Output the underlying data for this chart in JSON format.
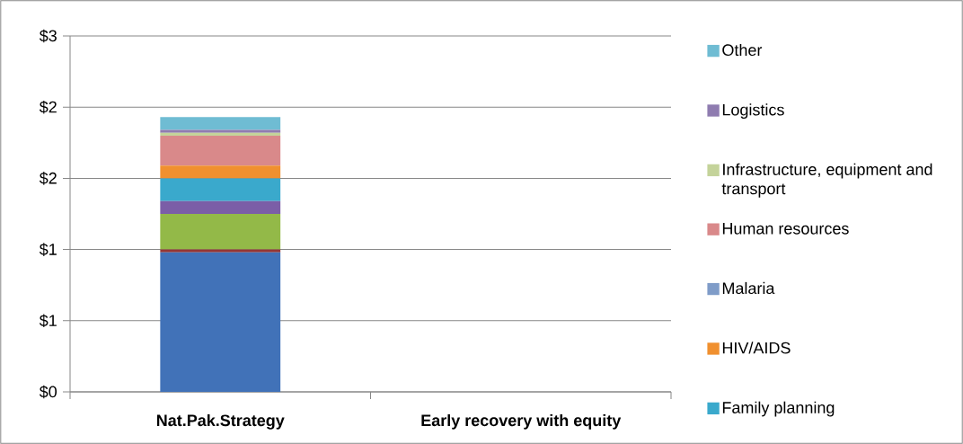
{
  "chart_data": {
    "type": "bar",
    "stacked": true,
    "categories": [
      "Nat.Pak.Strategy",
      "Early recovery with equity"
    ],
    "series": [
      {
        "color": "#4172b8",
        "values": [
          0.98,
          null
        ]
      },
      {
        "color": "#943634",
        "values": [
          0.02,
          null
        ]
      },
      {
        "color": "#93b948",
        "values": [
          0.25,
          null
        ]
      },
      {
        "color": "#7b5ea7",
        "values": [
          0.09,
          null
        ]
      },
      {
        "name": "Family planning",
        "color": "#3aa9cc",
        "values": [
          0.16,
          null
        ]
      },
      {
        "name": "HIV/AIDS",
        "color": "#f0902f",
        "values": [
          0.09,
          null
        ]
      },
      {
        "name": "Malaria",
        "color": "#7f9cc8",
        "values": [
          0,
          null
        ]
      },
      {
        "name": "Human resources",
        "color": "#d9898a",
        "values": [
          0.21,
          null
        ]
      },
      {
        "name": "Infrastructure, equipment and transport",
        "color": "#c4d39a",
        "values": [
          0.02,
          null
        ]
      },
      {
        "name": "Logistics",
        "color": "#8f7cb0",
        "values": [
          0.02,
          null
        ]
      },
      {
        "name": "Other",
        "color": "#6fbcd3",
        "values": [
          0.09,
          null
        ]
      }
    ],
    "ylim": [
      0,
      2.5
    ],
    "yticks": [
      {
        "value": 0,
        "label": "$0"
      },
      {
        "value": 0.5,
        "label": "$1"
      },
      {
        "value": 1,
        "label": "$1"
      },
      {
        "value": 1.5,
        "label": "$2"
      },
      {
        "value": 2,
        "label": "$2"
      },
      {
        "value": 2.5,
        "label": "$3"
      }
    ],
    "grid": "y",
    "legend": "right"
  }
}
